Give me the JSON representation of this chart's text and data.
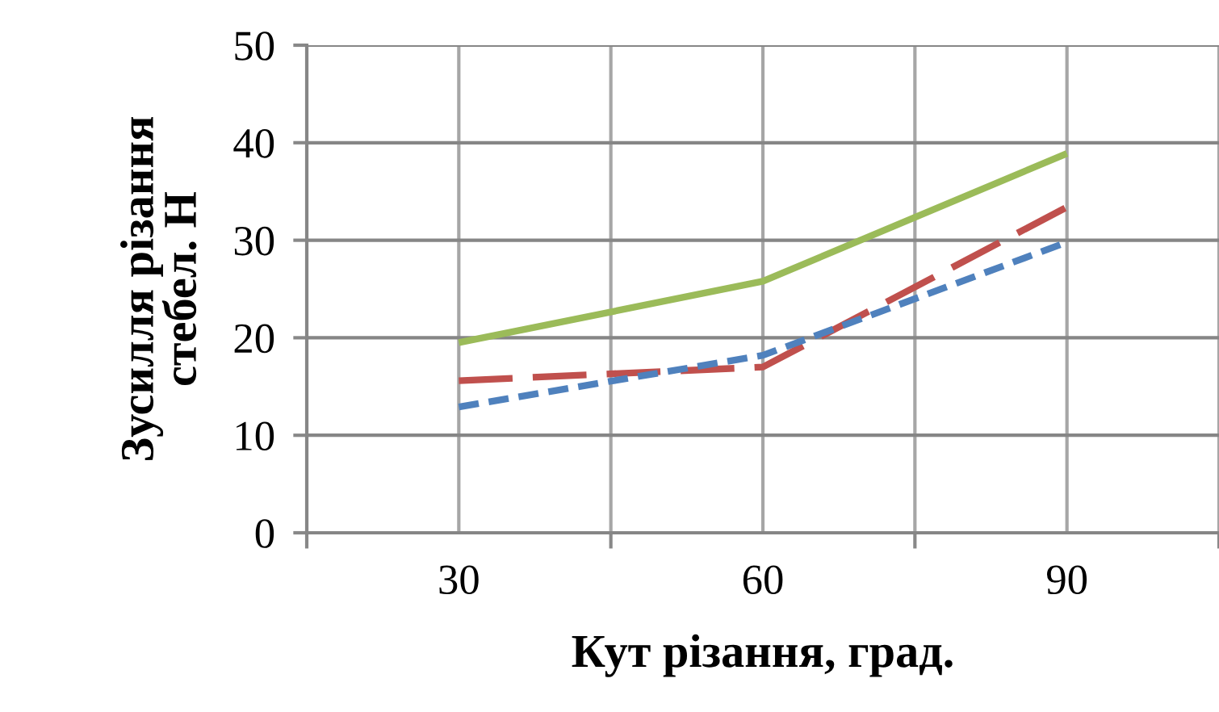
{
  "chart_data": {
    "type": "line",
    "xlabel": "Кут різання, град.",
    "ylabel": "Зусилля різання\nстебел. Н",
    "categories": [
      "30",
      "60",
      "90"
    ],
    "series": [
      {
        "color": "#9bbb59",
        "line_style": "solid",
        "values": [
          19.5,
          25.8,
          38.9
        ]
      },
      {
        "color": "#c0504d",
        "line_style": "dashed",
        "values": [
          15.6,
          17.0,
          33.4
        ]
      },
      {
        "color": "#4f81bd",
        "line_style": "dotted",
        "values": [
          12.9,
          18.2,
          29.8
        ]
      }
    ],
    "ylim": [
      0,
      50
    ],
    "yticks": [
      0,
      10,
      20,
      30,
      40,
      50
    ],
    "grid": true,
    "marker": "none"
  }
}
